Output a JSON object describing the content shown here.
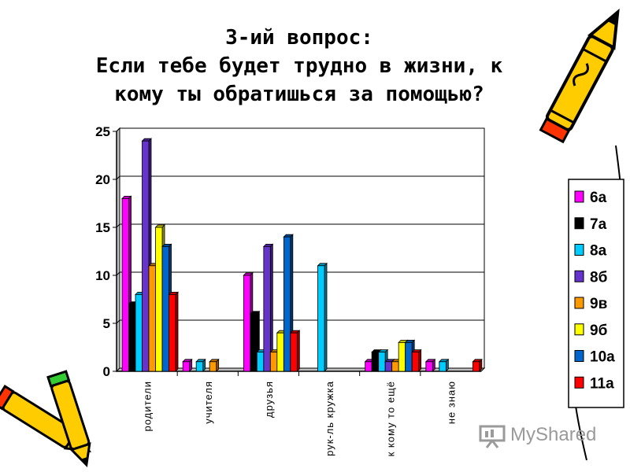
{
  "slide": {
    "title_lines": [
      "3-ий вопрос:",
      "Если тебе будет трудно в жизни, к",
      "кому ты обратишься за помощью?"
    ]
  },
  "watermark": {
    "text": "MyShared",
    "icon": "presentation-board-icon"
  },
  "decor": {
    "icons": [
      "pencil-icon",
      "crayons-icon"
    ]
  },
  "chart_data": {
    "type": "bar",
    "categories": [
      "родители",
      "учителя",
      "друзья",
      "рук-ль кружка",
      "к кому то ещё",
      "не знаю"
    ],
    "series": [
      {
        "name": "6а",
        "color": "#ff00ff",
        "values": [
          18,
          1,
          10,
          0,
          1,
          1
        ]
      },
      {
        "name": "7а",
        "color": "#000000",
        "values": [
          7,
          0,
          6,
          0,
          2,
          0
        ]
      },
      {
        "name": "8а",
        "color": "#00ccff",
        "values": [
          8,
          1,
          2,
          11,
          2,
          1
        ]
      },
      {
        "name": "8б",
        "color": "#6633cc",
        "values": [
          24,
          0,
          13,
          0,
          1,
          0
        ]
      },
      {
        "name": "9в",
        "color": "#ff9900",
        "values": [
          11,
          1,
          2,
          0,
          1,
          0
        ]
      },
      {
        "name": "9б",
        "color": "#ffff00",
        "values": [
          15,
          0,
          4,
          0,
          3,
          0
        ]
      },
      {
        "name": "10а",
        "color": "#0066cc",
        "values": [
          13,
          0,
          14,
          0,
          3,
          0
        ]
      },
      {
        "name": "11а",
        "color": "#ff0000",
        "values": [
          8,
          0,
          4,
          0,
          2,
          1
        ]
      }
    ],
    "ylim": [
      0,
      25
    ],
    "yticks": [
      0,
      5,
      10,
      15,
      20,
      25
    ],
    "grid": true,
    "legend_position": "right",
    "bar_style": "3d"
  }
}
